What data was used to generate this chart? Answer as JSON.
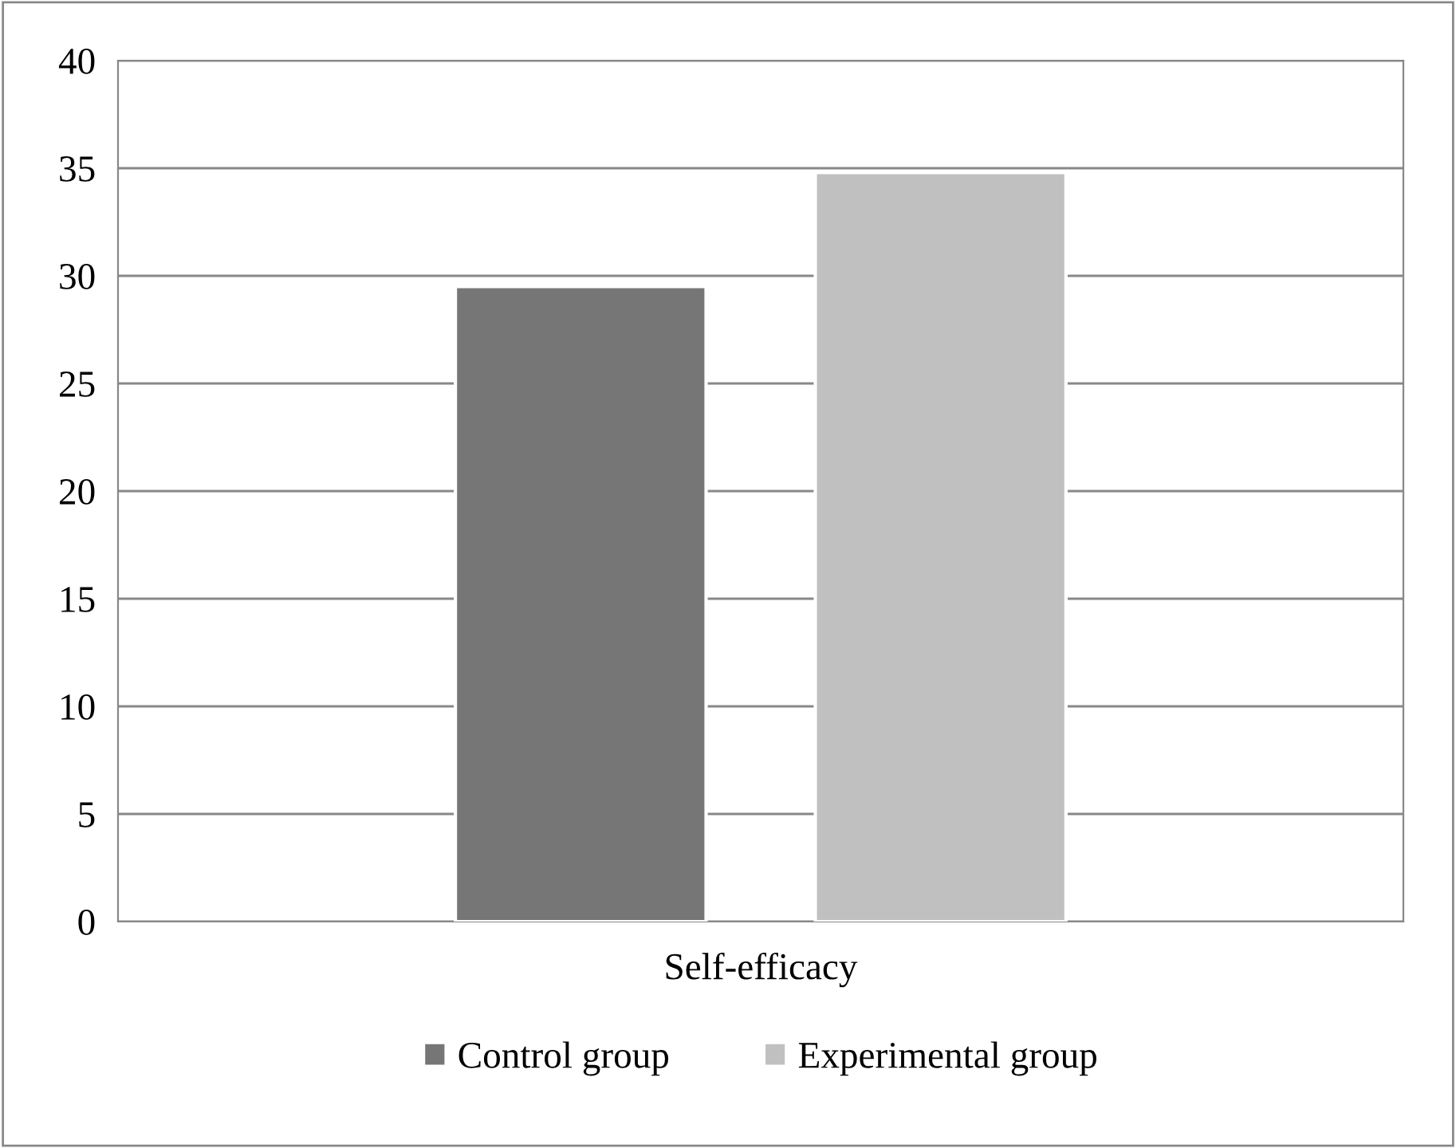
{
  "chart_data": {
    "type": "bar",
    "categories": [
      "Self-efficacy"
    ],
    "series": [
      {
        "name": "Control group",
        "color": "#767676",
        "values": [
          29.5
        ]
      },
      {
        "name": "Experimental group",
        "color": "#c0c0c0",
        "values": [
          34.8
        ]
      }
    ],
    "ylim": [
      0,
      40
    ],
    "yticks": [
      0,
      5,
      10,
      15,
      20,
      25,
      30,
      35,
      40
    ],
    "grid": "y",
    "legend": "bottom"
  }
}
